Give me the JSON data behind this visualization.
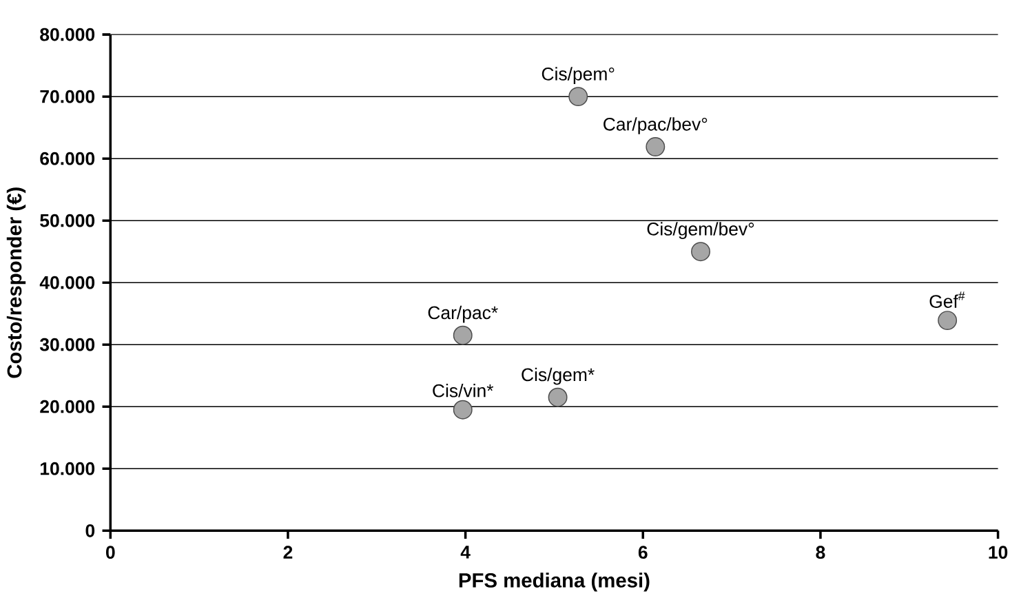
{
  "chart_data": {
    "type": "scatter",
    "xlabel": "PFS mediana (mesi)",
    "ylabel": "Costo/responder (€)",
    "x": [
      5.27,
      6.14,
      6.65,
      9.43,
      3.97,
      5.04,
      3.97
    ],
    "values": [
      70000,
      61900,
      45000,
      33900,
      31500,
      21500,
      19500
    ],
    "color": "#a6a6a6",
    "xlim": [
      0,
      10
    ],
    "xticks": [
      0,
      2,
      4,
      6,
      8,
      10
    ],
    "ylim": [
      0,
      80000
    ],
    "yticks": [
      0,
      {
        "value": 10000,
        "label": "10.000"
      },
      {
        "value": 20000,
        "label": "20.000"
      },
      {
        "value": 30000,
        "label": "30.000"
      },
      {
        "value": 40000,
        "label": "40.000"
      },
      {
        "value": 50000,
        "label": "50.000"
      },
      {
        "value": 60000,
        "label": "60.000"
      },
      {
        "value": 70000,
        "label": "70.000"
      },
      {
        "value": 80000,
        "label": "80.000"
      }
    ],
    "grid": "y",
    "annotations": [
      {
        "text": "Cis/pem°",
        "x": 5.27,
        "y": 70000
      },
      {
        "text": "Car/pac/bev°",
        "x": 6.14,
        "y": 61900
      },
      {
        "text": "Cis/gem/bev°",
        "x": 6.65,
        "y": 45000
      },
      {
        "text": "Gef$^{#}$",
        "x": 9.43,
        "y": 33900
      },
      {
        "text": "Car/pac*",
        "x": 3.97,
        "y": 31500
      },
      {
        "text": "Cis/gem*",
        "x": 5.04,
        "y": 21500
      },
      {
        "text": "Cis/vin*",
        "x": 3.97,
        "y": 19500
      }
    ]
  }
}
